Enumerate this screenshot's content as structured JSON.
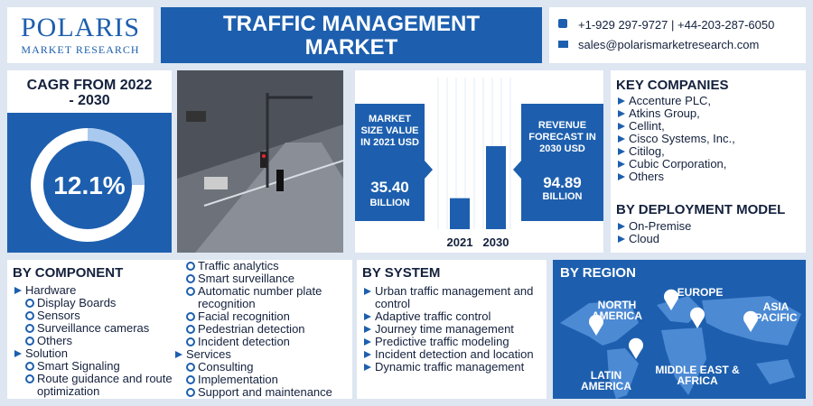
{
  "header": {
    "logo": "POLARIS",
    "logo_tagline": "MARKET RESEARCH",
    "title": "TRAFFIC MANAGEMENT MARKET",
    "phone": "+1-929 297-9727 | +44-203-287-6050",
    "email": "sales@polarismarketresearch.com"
  },
  "cagr": {
    "label": "CAGR FROM 2022 - 2030",
    "value": "12.1%"
  },
  "market": {
    "categories": [
      "2021",
      "2030"
    ],
    "values": [
      35.4,
      94.89
    ],
    "value_labels": [
      "35.40",
      "94.89"
    ],
    "captions": [
      "MARKET SIZE VALUE IN 2021 USD",
      "REVENUE FORECAST IN 2030 USD"
    ],
    "unit": "BILLION"
  },
  "key_companies": {
    "title": "KEY COMPANIES",
    "items": [
      "Accenture PLC,",
      "Atkins Group,",
      "Cellint,",
      "Cisco Systems, Inc.,",
      "Citilog,",
      "Cubic Corporation,",
      "Others"
    ]
  },
  "deployment": {
    "title": "BY DEPLOYMENT MODEL",
    "items": [
      "On-Premise",
      "Cloud"
    ]
  },
  "component": {
    "title": "BY COMPONENT",
    "groups": [
      {
        "name": "Hardware",
        "items": [
          "Display Boards",
          "Sensors",
          "Surveillance cameras",
          "Others"
        ]
      },
      {
        "name": "Solution",
        "items": [
          "Smart Signaling",
          "Route guidance and route optimization",
          "Traffic analytics",
          "Smart surveillance",
          "Automatic number plate recognition",
          "Facial recognition",
          "Pedestrian detection",
          "Incident detection"
        ]
      },
      {
        "name": "Services",
        "items": [
          "Consulting",
          "Implementation",
          "Support and maintenance"
        ]
      }
    ]
  },
  "system": {
    "title": "BY SYSTEM",
    "items": [
      "Urban traffic management and control",
      "Adaptive traffic control",
      "Journey time management",
      "Predictive traffic modeling",
      "Incident detection and location",
      "Dynamic traffic management"
    ]
  },
  "region": {
    "title": "BY REGION",
    "items": [
      "NORTH AMERICA",
      "EUROPE",
      "ASIA PACIFIC",
      "LATIN AMERICA",
      "MIDDLE EAST & AFRICA"
    ]
  }
}
